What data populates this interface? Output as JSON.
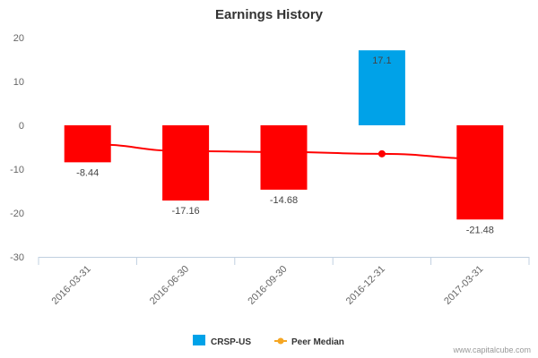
{
  "chart_data": {
    "type": "bar",
    "title": "Earnings History",
    "categories": [
      "2016-03-31",
      "2016-06-30",
      "2016-09-30",
      "2016-12-31",
      "2017-03-31"
    ],
    "series": [
      {
        "name": "CRSP-US",
        "kind": "bar",
        "values": [
          -8.44,
          -17.16,
          -14.68,
          17.1,
          -21.48
        ],
        "data_labels": [
          "-8.44",
          "-17.16",
          "-14.68",
          "17.1",
          "-21.48"
        ],
        "colors": [
          "#ff0000",
          "#ff0000",
          "#ff0000",
          "#00a2e8",
          "#ff0000"
        ]
      },
      {
        "name": "Peer Median",
        "kind": "line",
        "values": [
          -4.3,
          -5.9,
          -6.1,
          -6.5,
          -7.6
        ],
        "color": "#ff0000",
        "marked_points": [
          3
        ]
      }
    ],
    "ylim": [
      -30,
      20
    ],
    "yticks": [
      20,
      10,
      0,
      -10,
      -20,
      -30
    ],
    "legend": {
      "position": "bottom",
      "entries": [
        {
          "label": "CRSP-US",
          "color": "#00a2e8",
          "marker": "square"
        },
        {
          "label": "Peer Median",
          "color": "#f5a623",
          "marker": "line-dot"
        }
      ]
    },
    "credit": "www.capitalcube.com"
  }
}
